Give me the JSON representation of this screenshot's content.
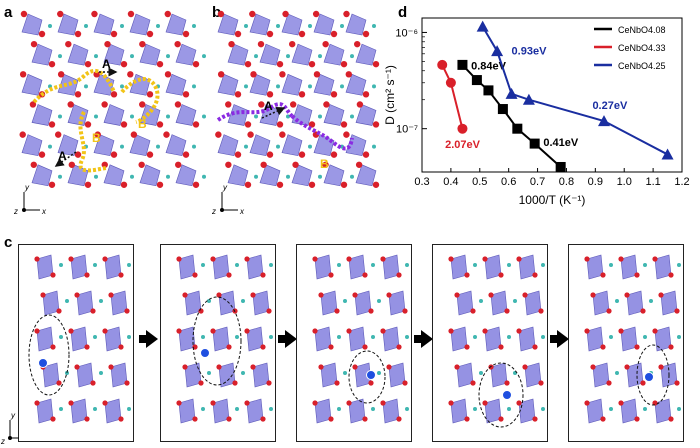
{
  "panels": {
    "a": "a",
    "b": "b",
    "c": "c",
    "d": "d"
  },
  "structure_a": {
    "path_labels": [
      "A",
      "A",
      "B",
      "B"
    ],
    "axis_y": "y",
    "axis_z": "z",
    "axis_x": "x"
  },
  "structure_b": {
    "path_labels": [
      "A",
      "B"
    ],
    "axis_y": "y",
    "axis_z": "z",
    "axis_x": "x"
  },
  "structure_c": {
    "axis_y": "y",
    "axis_z": "z",
    "axis_x": "x",
    "frames": 5
  },
  "colors": {
    "polyhedra": "#8a86e0",
    "oxygen": "#d9202a",
    "cerium": "#3fb7b1",
    "path_yellow": "#f2c417",
    "path_purple": "#8a2be2",
    "ion_blue": "#1f4fe0",
    "series_408": "#000000",
    "series_433": "#d9202a",
    "series_425": "#1a2ea0"
  },
  "chart_data": {
    "type": "scatter",
    "xlabel": "1000/T (K⁻¹)",
    "ylabel": "D (cm² s⁻¹)",
    "ylog": true,
    "xlim": [
      0.3,
      1.2
    ],
    "ylim_exp": [
      -7.45,
      -5.85
    ],
    "x_ticks": [
      "0.3",
      "0.4",
      "0.5",
      "0.6",
      "0.7",
      "0.8",
      "0.9",
      "1.0",
      "1.1",
      "1.2"
    ],
    "y_ticks": [
      "10⁻⁶",
      "10⁻⁷"
    ],
    "legend": [
      "CeNbO4.08",
      "CeNbO4.33",
      "CeNbO4.25"
    ],
    "legend_placement": "top-right",
    "series": [
      {
        "name": "CeNbO4.08",
        "marker": "square",
        "color": "#000000",
        "points": [
          [
            0.44,
            4.6e-07
          ],
          [
            0.49,
            3.2e-07
          ],
          [
            0.53,
            2.5e-07
          ],
          [
            0.58,
            1.6e-07
          ],
          [
            0.63,
            1e-07
          ],
          [
            0.69,
            7e-08
          ],
          [
            0.78,
            4e-08
          ]
        ],
        "annotations": [
          {
            "text": "0.84eV",
            "x": 0.47,
            "y": 4.1e-07
          },
          {
            "text": "0.41eV",
            "x": 0.72,
            "y": 6.6e-08
          }
        ]
      },
      {
        "name": "CeNbO4.33",
        "marker": "circle",
        "color": "#d9202a",
        "points": [
          [
            0.37,
            4.6e-07
          ],
          [
            0.4,
            3e-07
          ],
          [
            0.44,
            1e-07
          ]
        ],
        "annotations": [
          {
            "text": "2.07eV",
            "x": 0.38,
            "y": 6.3e-08
          }
        ]
      },
      {
        "name": "CeNbO4.25",
        "marker": "triangle",
        "color": "#1a2ea0",
        "points": [
          [
            0.51,
            1.15e-06
          ],
          [
            0.56,
            6.4e-07
          ],
          [
            0.61,
            2.3e-07
          ],
          [
            0.67,
            2e-07
          ],
          [
            0.93,
            1.2e-07
          ],
          [
            1.15,
            5.4e-08
          ]
        ],
        "annotations": [
          {
            "text": "0.93eV",
            "x": 0.61,
            "y": 5.9e-07
          },
          {
            "text": "0.27eV",
            "x": 0.89,
            "y": 1.6e-07
          }
        ]
      }
    ]
  }
}
